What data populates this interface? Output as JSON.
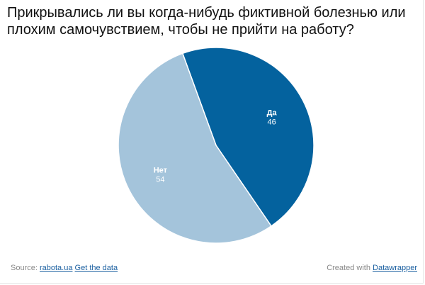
{
  "chart_data": {
    "type": "pie",
    "title": "Прикрывались ли вы когда-нибудь фиктивной болезнью или плохим самочувствием, чтобы не прийти на работу?",
    "slices": [
      {
        "label": "Да",
        "value": 46,
        "color": "#04629e",
        "text_color": "#ffffff"
      },
      {
        "label": "Нет",
        "value": 54,
        "color": "#a4c4db",
        "text_color": "#ffffff"
      }
    ]
  },
  "footer": {
    "source_prefix": "Source:",
    "source_link": "rabota.ua",
    "get_data_link": "Get the data",
    "created_with_prefix": "Created with",
    "created_with_link": "Datawrapper"
  },
  "colors": {
    "title": "#111111",
    "footer_text": "#888888",
    "link": "#1a5fa0",
    "slice_border": "#ffffff"
  }
}
